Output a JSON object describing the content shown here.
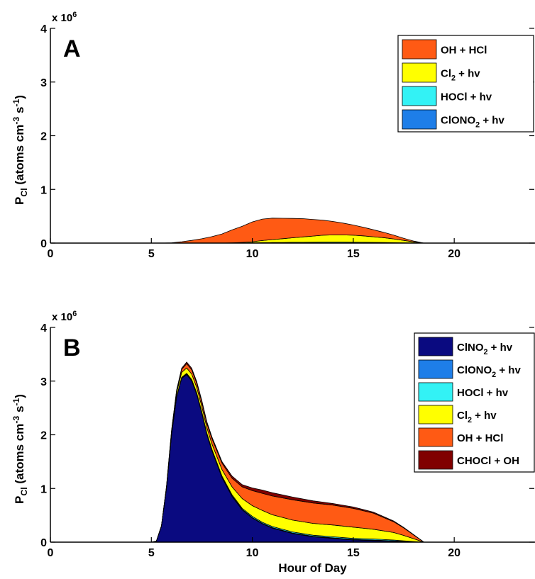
{
  "chart_data": [
    {
      "type": "area",
      "stacked": true,
      "panel_label": "A",
      "ylabel": "P_Cl (atoms cm^-3 s^-1)",
      "y_multiplier": "x 10^6",
      "xlim": [
        0,
        24
      ],
      "ylim": [
        0,
        4
      ],
      "xticks": [
        0,
        5,
        10,
        15,
        20
      ],
      "yticks": [
        0,
        1,
        2,
        3,
        4
      ],
      "legend_position": "top-right",
      "x": [
        5.0,
        5.5,
        6.0,
        6.5,
        7.0,
        7.5,
        8.0,
        8.5,
        9.0,
        9.5,
        10.0,
        10.5,
        11.0,
        11.5,
        12.0,
        12.5,
        13.0,
        13.5,
        14.0,
        14.5,
        15.0,
        15.5,
        16.0,
        16.5,
        17.0,
        17.5,
        18.0,
        18.5,
        19.0
      ],
      "series": [
        {
          "name": "ClONO2 + hv",
          "color": "#1e7ee8",
          "values": [
            0,
            0,
            0,
            0,
            0,
            0,
            0,
            0,
            0,
            0,
            0,
            0,
            0,
            0,
            0,
            0,
            0,
            0,
            0,
            0,
            0,
            0,
            0,
            0,
            0,
            0,
            0,
            0,
            0
          ]
        },
        {
          "name": "HOCl + hv",
          "color": "#33f2f5",
          "values": [
            0,
            0,
            0,
            0,
            0,
            0,
            0,
            0,
            0.002,
            0.003,
            0.005,
            0.008,
            0.01,
            0.012,
            0.014,
            0.015,
            0.016,
            0.017,
            0.017,
            0.017,
            0.016,
            0.015,
            0.013,
            0.011,
            0.008,
            0.005,
            0.002,
            0,
            0
          ]
        },
        {
          "name": "Cl2 + hv",
          "color": "#ffff00",
          "values": [
            0,
            0,
            0,
            0,
            0,
            0,
            0,
            0,
            0.003,
            0.01,
            0.02,
            0.04,
            0.055,
            0.07,
            0.085,
            0.1,
            0.115,
            0.13,
            0.135,
            0.135,
            0.13,
            0.12,
            0.105,
            0.09,
            0.07,
            0.045,
            0.02,
            0,
            0
          ]
        },
        {
          "name": "OH + HCl",
          "color": "#ff5a14",
          "values": [
            0,
            0,
            0.005,
            0.025,
            0.05,
            0.08,
            0.12,
            0.17,
            0.24,
            0.3,
            0.37,
            0.4,
            0.4,
            0.38,
            0.36,
            0.34,
            0.31,
            0.28,
            0.25,
            0.22,
            0.19,
            0.16,
            0.13,
            0.1,
            0.07,
            0.04,
            0.015,
            0,
            0
          ]
        }
      ]
    },
    {
      "type": "area",
      "stacked": true,
      "panel_label": "B",
      "xlabel": "Hour of Day",
      "ylabel": "P_Cl (atoms cm^-3 s^-1)",
      "y_multiplier": "x 10^6",
      "xlim": [
        0,
        24
      ],
      "ylim": [
        0,
        4
      ],
      "xticks": [
        0,
        5,
        10,
        15,
        20
      ],
      "yticks": [
        0,
        1,
        2,
        3,
        4
      ],
      "legend_position": "top-right",
      "x": [
        5.0,
        5.25,
        5.5,
        5.75,
        6.0,
        6.25,
        6.5,
        6.75,
        7.0,
        7.25,
        7.5,
        7.75,
        8.0,
        8.5,
        9.0,
        9.5,
        10.0,
        10.5,
        11.0,
        12.0,
        13.0,
        14.0,
        15.0,
        16.0,
        17.0,
        17.5,
        18.0,
        18.5,
        19.0
      ],
      "series": [
        {
          "name": "ClNO2 + hv",
          "color": "#0a0a80",
          "values": [
            0,
            0.02,
            0.3,
            1.0,
            2.0,
            2.7,
            3.05,
            3.12,
            3.0,
            2.75,
            2.4,
            2.0,
            1.7,
            1.2,
            0.85,
            0.6,
            0.45,
            0.34,
            0.26,
            0.16,
            0.1,
            0.07,
            0.04,
            0.03,
            0.02,
            0.01,
            0.005,
            0,
            0
          ]
        },
        {
          "name": "ClONO2 + hv",
          "color": "#1e7ee8",
          "values": [
            0,
            0,
            0,
            0.005,
            0.01,
            0.01,
            0.01,
            0.01,
            0.01,
            0.01,
            0.01,
            0.01,
            0.01,
            0.01,
            0.01,
            0.01,
            0.01,
            0.01,
            0.01,
            0.01,
            0.01,
            0.01,
            0.01,
            0.01,
            0.005,
            0.005,
            0.002,
            0,
            0
          ]
        },
        {
          "name": "HOCl + hv",
          "color": "#33f2f5",
          "values": [
            0,
            0,
            0,
            0,
            0,
            0.005,
            0.01,
            0.015,
            0.02,
            0.02,
            0.02,
            0.02,
            0.02,
            0.02,
            0.02,
            0.02,
            0.02,
            0.02,
            0.02,
            0.02,
            0.02,
            0.02,
            0.02,
            0.02,
            0.015,
            0.01,
            0.005,
            0,
            0
          ]
        },
        {
          "name": "Cl2 + hv",
          "color": "#ffff00",
          "values": [
            0,
            0,
            0,
            0.02,
            0.05,
            0.07,
            0.09,
            0.1,
            0.1,
            0.1,
            0.1,
            0.1,
            0.1,
            0.12,
            0.15,
            0.18,
            0.2,
            0.22,
            0.22,
            0.22,
            0.22,
            0.22,
            0.21,
            0.18,
            0.14,
            0.1,
            0.05,
            0,
            0
          ]
        },
        {
          "name": "OH + HCl",
          "color": "#ff5a14",
          "values": [
            0,
            0,
            0,
            0.01,
            0.02,
            0.04,
            0.06,
            0.08,
            0.08,
            0.08,
            0.08,
            0.08,
            0.1,
            0.12,
            0.16,
            0.22,
            0.28,
            0.32,
            0.35,
            0.38,
            0.38,
            0.37,
            0.35,
            0.3,
            0.2,
            0.14,
            0.07,
            0,
            0
          ]
        },
        {
          "name": "CHOCl + OH",
          "color": "#800000",
          "values": [
            0,
            0,
            0,
            0,
            0.005,
            0.01,
            0.02,
            0.03,
            0.03,
            0.03,
            0.03,
            0.03,
            0.03,
            0.03,
            0.04,
            0.04,
            0.05,
            0.06,
            0.06,
            0.05,
            0.04,
            0.03,
            0.025,
            0.02,
            0.015,
            0.01,
            0.005,
            0,
            0
          ]
        }
      ]
    }
  ]
}
